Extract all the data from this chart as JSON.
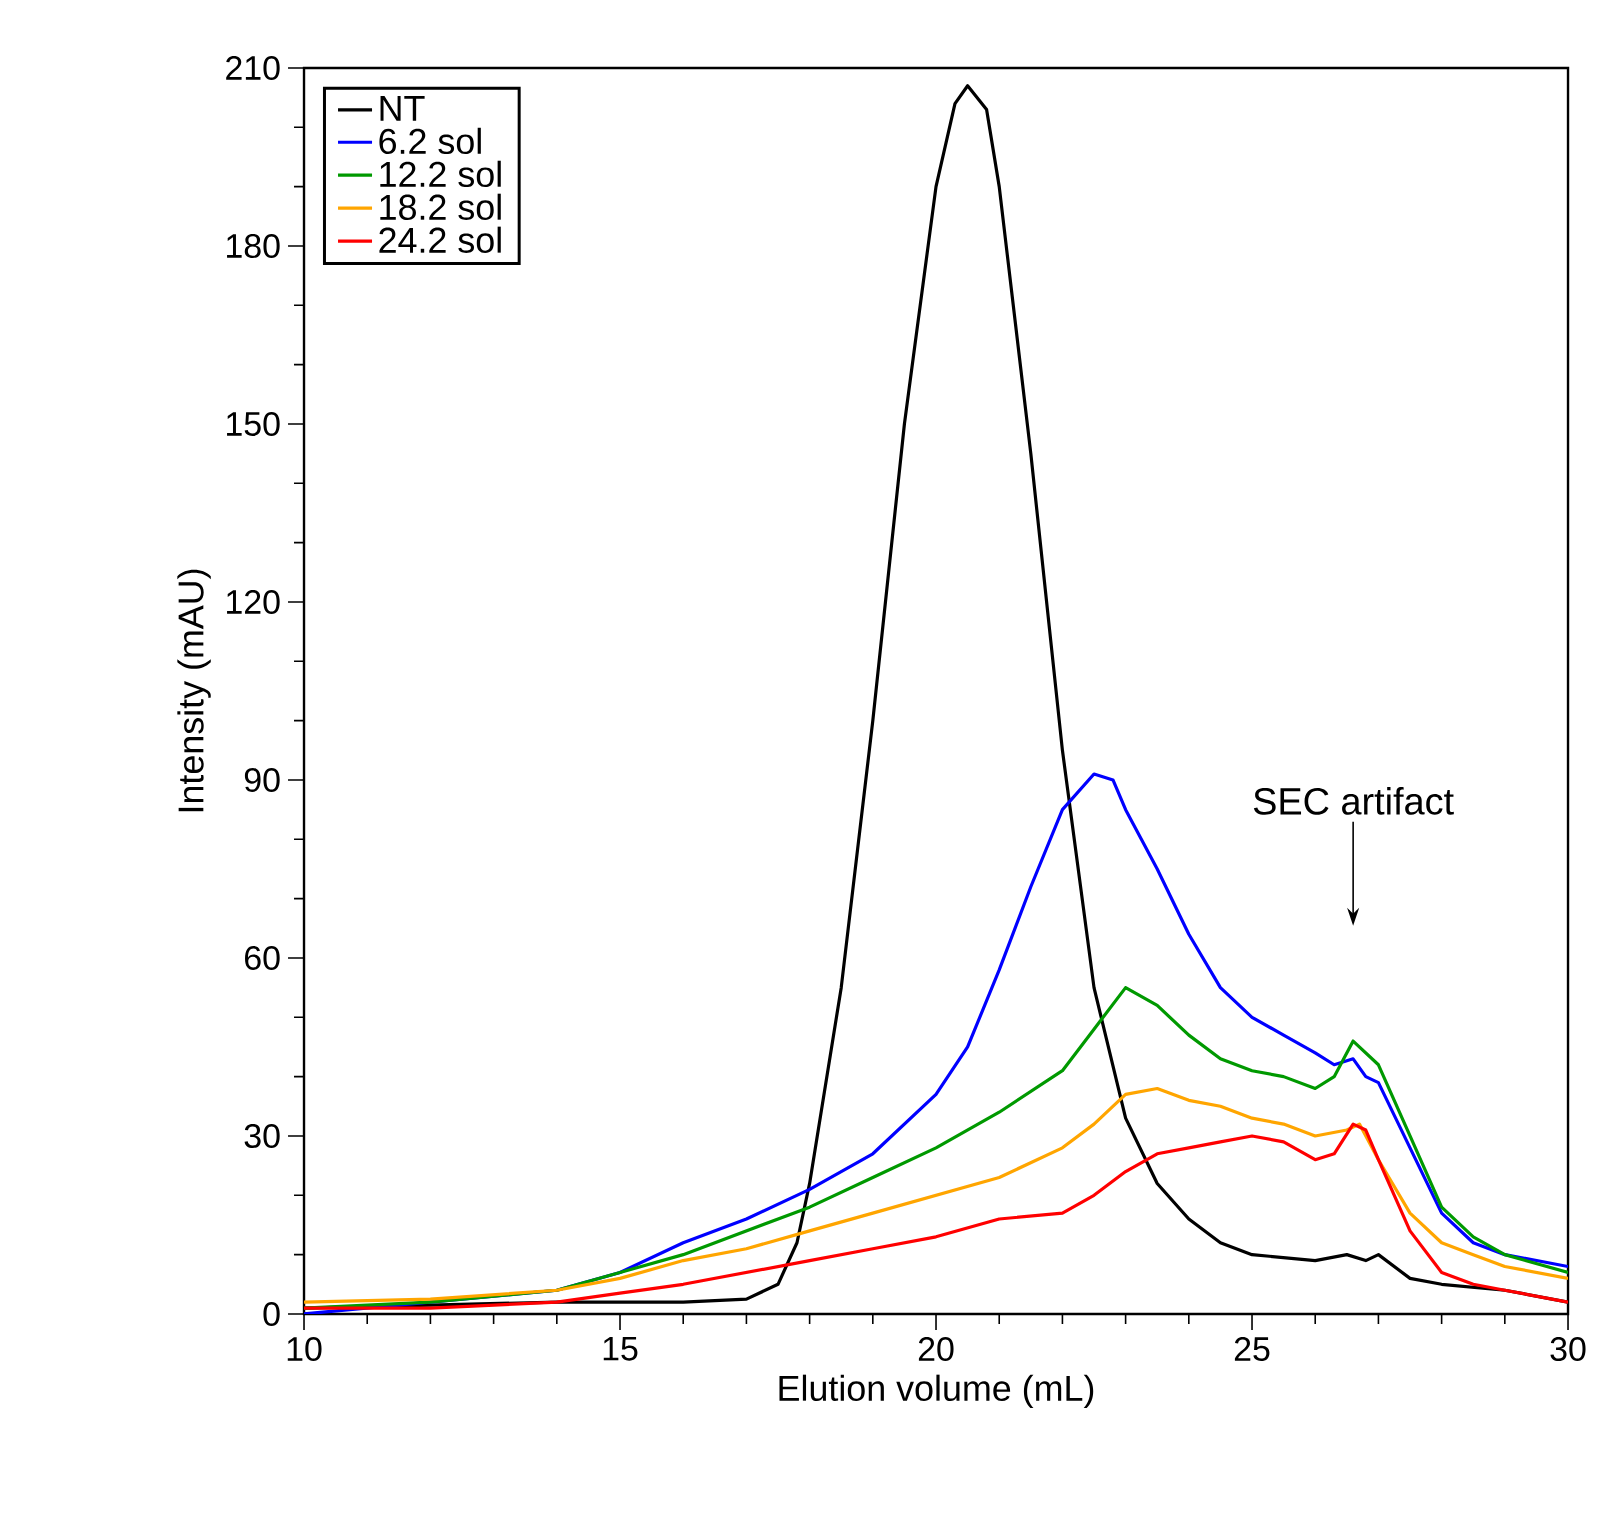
{
  "chart_data": {
    "type": "line",
    "xlabel": "Elution volume (mL)",
    "ylabel": "Intensity (mAU)",
    "xlim": [
      10,
      30
    ],
    "ylim": [
      0,
      210
    ],
    "xticks": [
      10,
      15,
      20,
      25,
      30
    ],
    "yticks": [
      0,
      30,
      60,
      90,
      120,
      150,
      180,
      210
    ],
    "legend": "top left",
    "grid": false,
    "marker": "none",
    "line_style": "solid",
    "annotations": [
      "SEC artifact"
    ],
    "series": [
      {
        "name": "NT",
        "color": "#000000",
        "x": [
          10,
          12,
          14,
          16,
          17,
          17.5,
          17.8,
          18,
          18.5,
          19,
          19.5,
          20,
          20.3,
          20.5,
          20.8,
          21,
          21.5,
          22,
          22.5,
          23,
          23.5,
          24,
          24.5,
          25,
          26,
          26.5,
          26.8,
          27,
          27.5,
          28,
          29,
          30
        ],
        "values": [
          1,
          1.5,
          2,
          2,
          2.5,
          5,
          12,
          22,
          55,
          100,
          150,
          190,
          204,
          207,
          203,
          190,
          145,
          95,
          55,
          33,
          22,
          16,
          12,
          10,
          9,
          10,
          9,
          10,
          6,
          5,
          4,
          2
        ]
      },
      {
        "name": "6.2 sol",
        "color": "#0000ff",
        "x": [
          10,
          14,
          15,
          16,
          17,
          18,
          19,
          20,
          20.5,
          21,
          21.5,
          22,
          22.5,
          22.8,
          23,
          23.5,
          24,
          24.5,
          25,
          25.5,
          26,
          26.3,
          26.6,
          26.8,
          27,
          27.5,
          28,
          28.5,
          29,
          30
        ],
        "values": [
          0,
          4,
          7,
          12,
          16,
          21,
          27,
          37,
          45,
          58,
          72,
          85,
          91,
          90,
          85,
          75,
          64,
          55,
          50,
          47,
          44,
          42,
          43,
          40,
          39,
          28,
          17,
          12,
          10,
          8
        ]
      },
      {
        "name": "12.2 sol",
        "color": "#009900",
        "x": [
          10,
          12,
          14,
          15,
          16,
          17,
          18,
          19,
          20,
          21,
          22,
          22.5,
          23,
          23.5,
          24,
          24.5,
          25,
          25.5,
          26,
          26.3,
          26.6,
          27,
          27.5,
          28,
          28.5,
          29,
          30
        ],
        "values": [
          1,
          2,
          4,
          7,
          10,
          14,
          18,
          23,
          28,
          34,
          41,
          48,
          55,
          52,
          47,
          43,
          41,
          40,
          38,
          40,
          46,
          42,
          30,
          18,
          13,
          10,
          7
        ]
      },
      {
        "name": "18.2 sol",
        "color": "#ffa500",
        "x": [
          10,
          12,
          14,
          15,
          16,
          17,
          18,
          19,
          20,
          21,
          22,
          22.5,
          23,
          23.5,
          24,
          24.5,
          25,
          25.5,
          26,
          26.5,
          26.7,
          27,
          27.5,
          28,
          28.5,
          29,
          30
        ],
        "values": [
          2,
          2.5,
          4,
          6,
          9,
          11,
          14,
          17,
          20,
          23,
          28,
          32,
          37,
          38,
          36,
          35,
          33,
          32,
          30,
          31,
          32,
          26,
          17,
          12,
          10,
          8,
          6
        ]
      },
      {
        "name": "24.2 sol",
        "color": "#ff0000",
        "x": [
          10,
          12,
          14,
          15,
          16,
          17,
          18,
          19,
          20,
          21,
          22,
          22.5,
          23,
          23.5,
          24,
          24.5,
          25,
          25.5,
          26,
          26.3,
          26.6,
          26.8,
          27,
          27.5,
          28,
          28.5,
          29,
          30
        ],
        "values": [
          1,
          1,
          2,
          3.5,
          5,
          7,
          9,
          11,
          13,
          16,
          17,
          20,
          24,
          27,
          28,
          29,
          30,
          29,
          26,
          27,
          32,
          31,
          26,
          14,
          7,
          5,
          4,
          2
        ]
      }
    ]
  }
}
